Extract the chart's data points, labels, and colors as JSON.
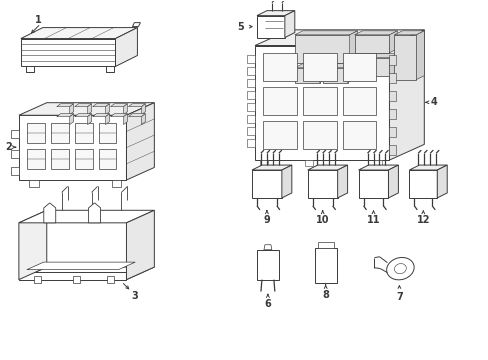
{
  "bg_color": "#ffffff",
  "lc": "#3a3a3a",
  "lw": 0.7,
  "figsize": [
    4.89,
    3.6
  ],
  "dpi": 100
}
